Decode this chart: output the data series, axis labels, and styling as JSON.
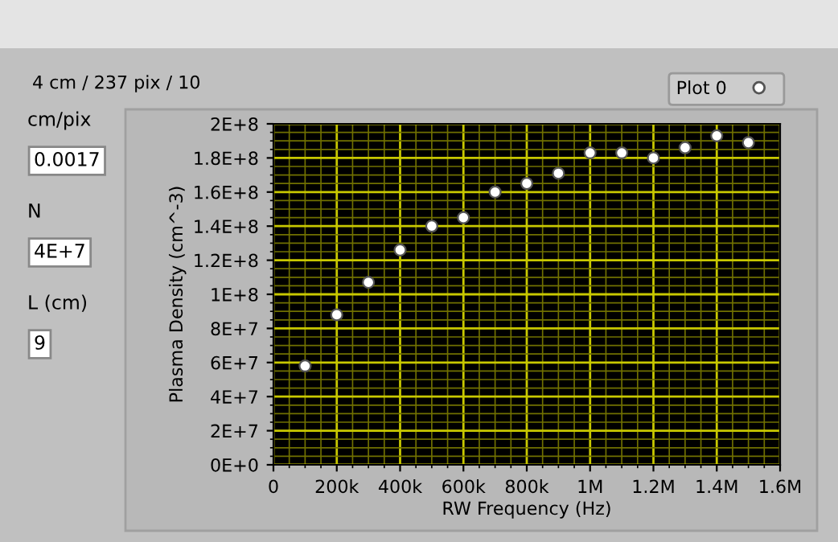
{
  "chart_data": {
    "type": "scatter",
    "xlabel": "RW Frequency (Hz)",
    "ylabel": "Plasma Density (cm^-3)",
    "x": [
      100000,
      200000,
      300000,
      400000,
      500000,
      600000,
      700000,
      800000,
      900000,
      1000000,
      1100000,
      1200000,
      1300000,
      1400000,
      1500000
    ],
    "series": [
      {
        "name": "Plot 0",
        "color": "#ffffff",
        "values": [
          58000000,
          88000000,
          107000000,
          126000000,
          140000000,
          145000000,
          160000000,
          165000000,
          171000000,
          183000000,
          183000000,
          180000000,
          186000000,
          193000000,
          189000000
        ]
      }
    ],
    "xlim": [
      0,
      1600000
    ],
    "ylim": [
      0,
      200000000
    ],
    "xticks": [
      0,
      {
        "value": 50000,
        "label": null
      },
      {
        "value": 100000,
        "label": null
      },
      {
        "value": 150000,
        "label": null
      },
      {
        "value": 200000,
        "label": "200k"
      },
      {
        "value": 250000,
        "label": null
      },
      {
        "value": 300000,
        "label": null
      },
      {
        "value": 350000,
        "label": null
      },
      {
        "value": 400000,
        "label": "400k"
      },
      {
        "value": 450000,
        "label": null
      },
      {
        "value": 500000,
        "label": null
      },
      {
        "value": 550000,
        "label": null
      },
      {
        "value": 600000,
        "label": "600k"
      },
      {
        "value": 650000,
        "label": null
      },
      {
        "value": 700000,
        "label": null
      },
      {
        "value": 750000,
        "label": null
      },
      {
        "value": 800000,
        "label": "800k"
      },
      {
        "value": 850000,
        "label": null
      },
      {
        "value": 900000,
        "label": null
      },
      {
        "value": 950000,
        "label": null
      },
      {
        "value": 1000000,
        "label": "1M"
      },
      {
        "value": 1050000,
        "label": null
      },
      {
        "value": 1100000,
        "label": null
      },
      {
        "value": 1150000,
        "label": null
      },
      {
        "value": 1200000,
        "label": "1.2M"
      },
      {
        "value": 1250000,
        "label": null
      },
      {
        "value": 1300000,
        "label": null
      },
      {
        "value": 1350000,
        "label": null
      },
      {
        "value": 1400000,
        "label": "1.4M"
      },
      {
        "value": 1450000,
        "label": null
      },
      {
        "value": 1500000,
        "label": null
      },
      {
        "value": 1550000,
        "label": null
      },
      {
        "value": 1600000,
        "label": "1.6M"
      }
    ],
    "yticks": [
      {
        "value": 0,
        "label": "0E+0"
      },
      {
        "value": 5000000,
        "label": null
      },
      {
        "value": 10000000,
        "label": null
      },
      {
        "value": 15000000,
        "label": null
      },
      {
        "value": 20000000,
        "label": "2E+7"
      },
      {
        "value": 25000000,
        "label": null
      },
      {
        "value": 30000000,
        "label": null
      },
      {
        "value": 35000000,
        "label": null
      },
      {
        "value": 40000000,
        "label": "4E+7"
      },
      {
        "value": 45000000,
        "label": null
      },
      {
        "value": 50000000,
        "label": null
      },
      {
        "value": 55000000,
        "label": null
      },
      {
        "value": 60000000,
        "label": "6E+7"
      },
      {
        "value": 65000000,
        "label": null
      },
      {
        "value": 70000000,
        "label": null
      },
      {
        "value": 75000000,
        "label": null
      },
      {
        "value": 80000000,
        "label": "8E+7"
      },
      {
        "value": 85000000,
        "label": null
      },
      {
        "value": 90000000,
        "label": null
      },
      {
        "value": 95000000,
        "label": null
      },
      {
        "value": 100000000,
        "label": "1E+8"
      },
      {
        "value": 105000000,
        "label": null
      },
      {
        "value": 110000000,
        "label": null
      },
      {
        "value": 115000000,
        "label": null
      },
      {
        "value": 120000000,
        "label": "1.2E+8"
      },
      {
        "value": 125000000,
        "label": null
      },
      {
        "value": 130000000,
        "label": null
      },
      {
        "value": 135000000,
        "label": null
      },
      {
        "value": 140000000,
        "label": "1.4E+8"
      },
      {
        "value": 145000000,
        "label": null
      },
      {
        "value": 150000000,
        "label": null
      },
      {
        "value": 155000000,
        "label": null
      },
      {
        "value": 160000000,
        "label": "1.6E+8"
      },
      {
        "value": 165000000,
        "label": null
      },
      {
        "value": 170000000,
        "label": null
      },
      {
        "value": 175000000,
        "label": null
      },
      {
        "value": 180000000,
        "label": "1.8E+8"
      },
      {
        "value": 185000000,
        "label": null
      },
      {
        "value": 190000000,
        "label": null
      },
      {
        "value": 195000000,
        "label": null
      },
      {
        "value": 200000000,
        "label": "2E+8"
      }
    ],
    "grid": true,
    "legend": "top right",
    "marker": "circle",
    "annotations": [
      "4 cm / 237 pix / 10",
      "cm/pix",
      "0.0017",
      "N",
      "4E+7",
      "L (cm)",
      "9"
    ]
  }
}
